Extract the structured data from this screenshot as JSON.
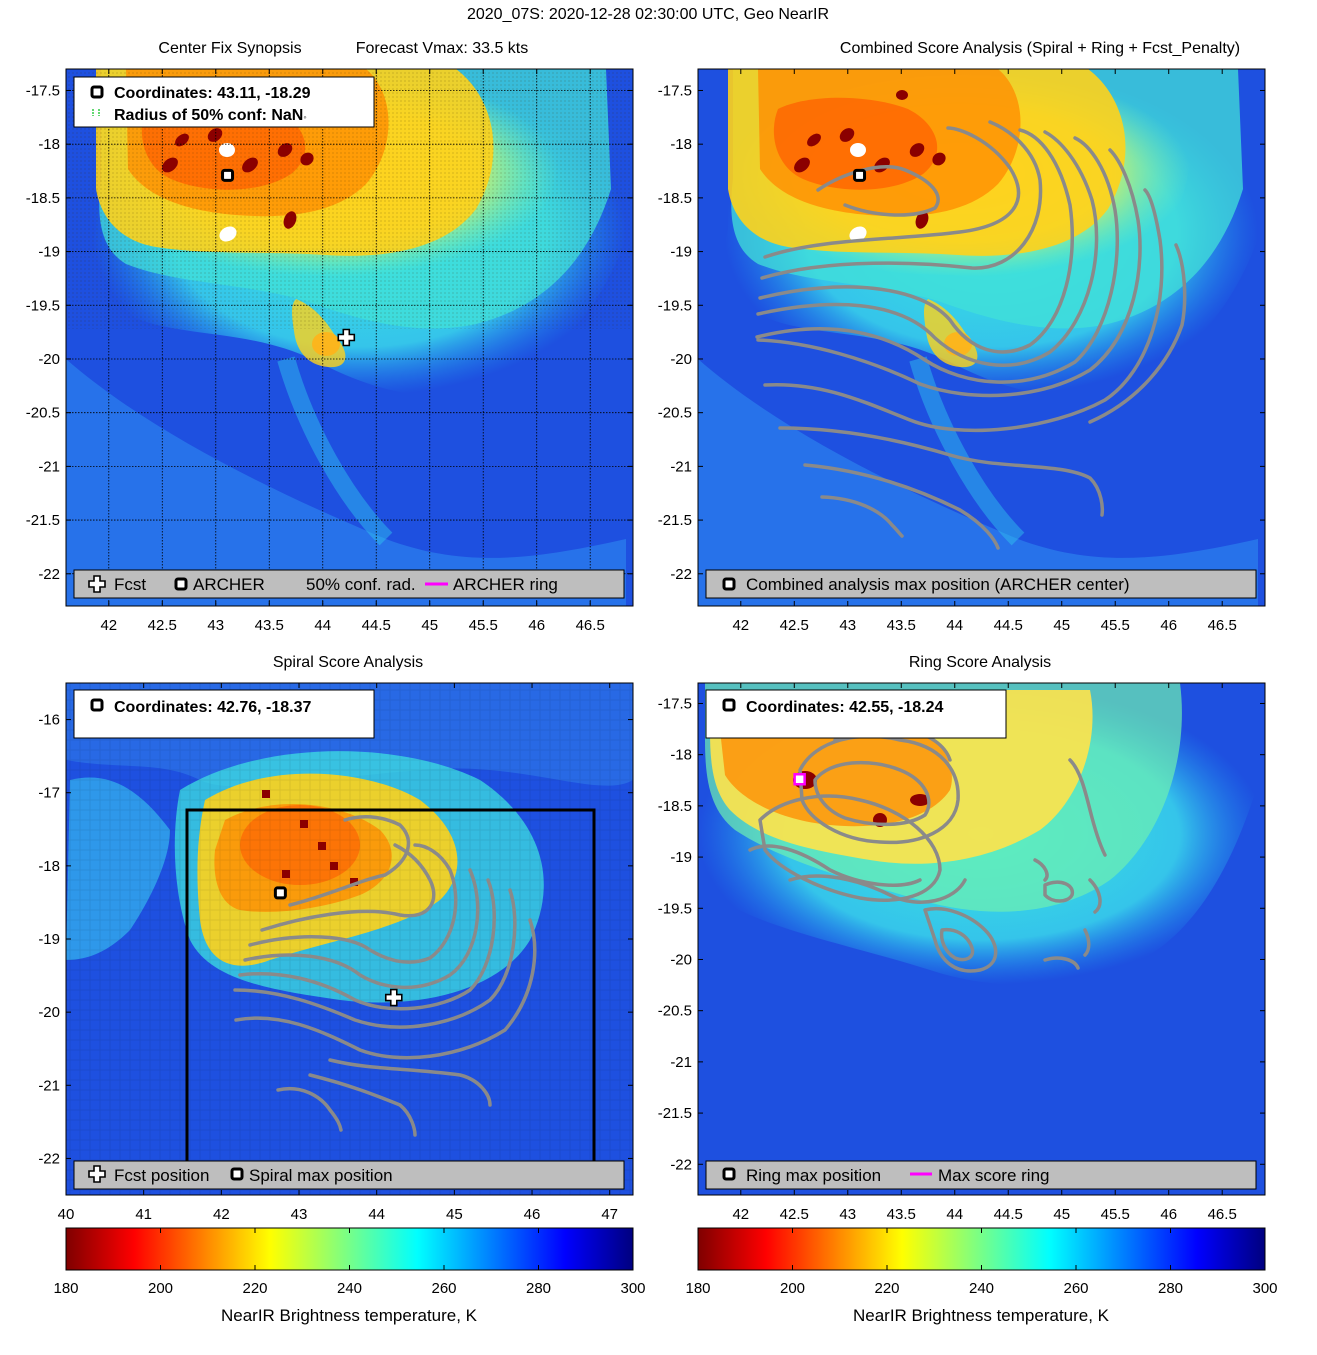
{
  "figure": {
    "title": "2020_07S: 2020-12-28 02:30:00 UTC, Geo NearIR"
  },
  "colors": {
    "grey_contour": "#8a8a8a",
    "legend_bg": "#bebebe",
    "magenta": "#ff00ff",
    "frame": "#000000"
  },
  "panels": {
    "synopsis": {
      "title": "Center Fix Synopsis",
      "subtitle": "Forecast Vmax: 33.5 kts",
      "info": {
        "coords": "Coordinates: 43.11, -18.29",
        "radius": "Radius of 50% conf: NaN",
        "radius_suffix": "◦"
      },
      "legend": {
        "fcst": "Fcst",
        "archer": "ARCHER",
        "conf": "50% conf. rad.",
        "ring": "ARCHER ring"
      }
    },
    "combined": {
      "title": "Combined Score Analysis (Spiral + Ring + Fcst_Penalty)",
      "legend": {
        "max": "Combined analysis max position (ARCHER center)"
      }
    },
    "spiral": {
      "title": "Spiral Score Analysis",
      "info": {
        "coords": "Coordinates: 42.76, -18.37"
      },
      "legend": {
        "fcst": "Fcst position",
        "max": "Spiral max position"
      }
    },
    "ring": {
      "title": "Ring Score Analysis",
      "info": {
        "coords": "Coordinates: 42.55, -18.24"
      },
      "legend": {
        "max": "Ring max position",
        "ring": "Max score ring"
      }
    }
  },
  "chart_data": [
    {
      "type": "heatmap",
      "title": "Center Fix Synopsis",
      "subtitle": "Forecast Vmax: 33.5 kts",
      "xlim": [
        41.6,
        46.9
      ],
      "ylim": [
        -22.3,
        -17.3
      ],
      "xticks": [
        "42",
        "42.5",
        "43",
        "43.5",
        "44",
        "44.5",
        "45",
        "45.5",
        "46",
        "46.5"
      ],
      "yticks": [
        "-17.5",
        "-18",
        "-18.5",
        "-19",
        "-19.5",
        "-20",
        "-20.5",
        "-21",
        "-21.5",
        "-22"
      ],
      "archer_center": [
        43.11,
        -18.29
      ],
      "forecast_position": [
        44.22,
        -19.8
      ],
      "grid": true
    },
    {
      "type": "heatmap",
      "title": "Combined Score Analysis (Spiral + Ring + Fcst_Penalty)",
      "xlim": [
        41.6,
        46.9
      ],
      "ylim": [
        -22.3,
        -17.3
      ],
      "xticks": [
        "42",
        "42.5",
        "43",
        "43.5",
        "44",
        "44.5",
        "45",
        "45.5",
        "46",
        "46.5"
      ],
      "yticks": [
        "-17.5",
        "-18",
        "-18.5",
        "-19",
        "-19.5",
        "-20",
        "-20.5",
        "-21",
        "-21.5",
        "-22"
      ],
      "max_position": [
        43.11,
        -18.29
      ]
    },
    {
      "type": "heatmap",
      "title": "Spiral Score Analysis",
      "xlim": [
        40,
        47.3
      ],
      "ylim": [
        -22.5,
        -15.5
      ],
      "xticks": [
        "40",
        "41",
        "42",
        "43",
        "44",
        "45",
        "46",
        "47"
      ],
      "yticks": [
        "-16",
        "-17",
        "-18",
        "-19",
        "-20",
        "-21",
        "-22"
      ],
      "spiral_max_position": [
        42.76,
        -18.37
      ],
      "forecast_position": [
        44.22,
        -19.8
      ]
    },
    {
      "type": "heatmap",
      "title": "Ring Score Analysis",
      "xlim": [
        41.6,
        46.9
      ],
      "ylim": [
        -22.3,
        -17.3
      ],
      "xticks": [
        "42",
        "42.5",
        "43",
        "43.5",
        "44",
        "44.5",
        "45",
        "45.5",
        "46",
        "46.5"
      ],
      "yticks": [
        "-17.5",
        "-18",
        "-18.5",
        "-19",
        "-19.5",
        "-20",
        "-20.5",
        "-21",
        "-21.5",
        "-22"
      ],
      "ring_max_position": [
        42.55,
        -18.24
      ]
    },
    {
      "type": "colorbar",
      "label": "NearIR Brightness temperature, K",
      "range": [
        180,
        300
      ],
      "ticks": [
        "180",
        "200",
        "220",
        "240",
        "260",
        "280",
        "300"
      ],
      "colormap": "jet_reversed"
    },
    {
      "type": "colorbar",
      "label": "NearIR Brightness temperature, K",
      "range": [
        180,
        300
      ],
      "ticks": [
        "180",
        "200",
        "220",
        "240",
        "260",
        "280",
        "300"
      ],
      "colormap": "jet_reversed"
    }
  ]
}
